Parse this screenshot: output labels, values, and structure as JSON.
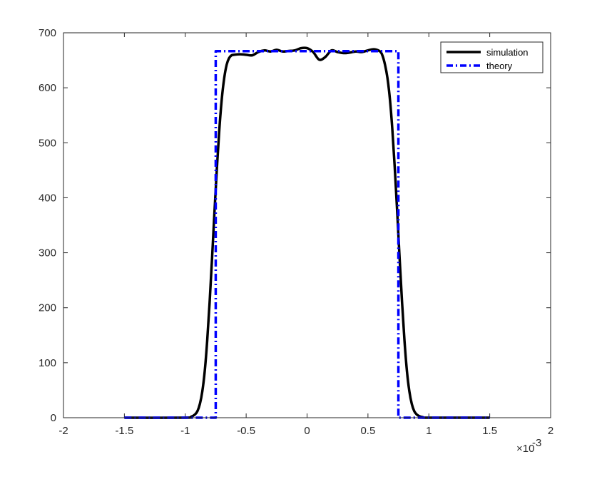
{
  "chart_data": {
    "type": "line",
    "title": "",
    "xlabel": "",
    "ylabel": "",
    "x_exponent_label": "×10",
    "x_exponent_power": "-3",
    "xlim": [
      -2,
      2
    ],
    "ylim": [
      0,
      700
    ],
    "x_ticks": [
      "-2",
      "-1.5",
      "-1",
      "-0.5",
      "0",
      "0.5",
      "1",
      "1.5",
      "2"
    ],
    "y_ticks": [
      "0",
      "100",
      "200",
      "300",
      "400",
      "500",
      "600",
      "700"
    ],
    "x_tick_values": [
      -2,
      -1.5,
      -1,
      -0.5,
      0,
      0.5,
      1,
      1.5,
      2
    ],
    "y_tick_values": [
      0,
      100,
      200,
      300,
      400,
      500,
      600,
      700
    ],
    "grid": false,
    "legend_position": "top-right",
    "series": [
      {
        "name": "simulation",
        "color": "#000000",
        "style": "solid",
        "x": [
          -1.5,
          -1.0,
          -0.95,
          -0.92,
          -0.9,
          -0.88,
          -0.86,
          -0.84,
          -0.82,
          -0.8,
          -0.78,
          -0.76,
          -0.74,
          -0.72,
          -0.7,
          -0.68,
          -0.66,
          -0.64,
          -0.62,
          -0.6,
          -0.55,
          -0.5,
          -0.45,
          -0.4,
          -0.35,
          -0.3,
          -0.25,
          -0.2,
          -0.15,
          -0.1,
          -0.05,
          0.0,
          0.05,
          0.1,
          0.15,
          0.2,
          0.25,
          0.3,
          0.35,
          0.4,
          0.45,
          0.5,
          0.55,
          0.6,
          0.62,
          0.64,
          0.66,
          0.68,
          0.7,
          0.72,
          0.74,
          0.76,
          0.78,
          0.8,
          0.82,
          0.84,
          0.86,
          0.88,
          0.9,
          0.92,
          0.95,
          1.0,
          1.5
        ],
        "y": [
          0,
          0,
          2,
          6,
          12,
          25,
          48,
          85,
          140,
          210,
          290,
          375,
          455,
          525,
          580,
          618,
          642,
          654,
          659,
          660,
          661,
          660,
          659,
          665,
          668,
          666,
          669,
          666,
          667,
          668,
          672,
          672,
          665,
          651,
          656,
          668,
          665,
          663,
          664,
          666,
          665,
          668,
          670,
          666,
          658,
          642,
          618,
          580,
          525,
          455,
          375,
          290,
          210,
          140,
          85,
          48,
          25,
          12,
          6,
          3,
          1,
          0,
          0
        ]
      },
      {
        "name": "theory",
        "color": "#0000ff",
        "style": "dash-dot",
        "x": [
          -1.5,
          -0.75,
          -0.75,
          0.75,
          0.75,
          1.5
        ],
        "y": [
          0,
          0,
          666.7,
          666.7,
          0,
          0
        ]
      }
    ]
  }
}
